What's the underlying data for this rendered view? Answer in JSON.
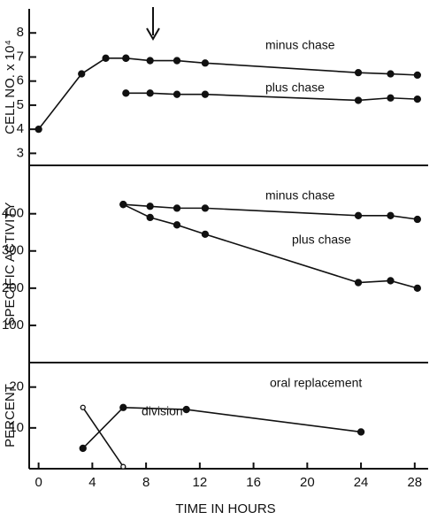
{
  "chart_data": [
    {
      "type": "line",
      "ylabel": "CELL NO. x 10⁴",
      "xlim": [
        -0.7,
        29
      ],
      "ylim": [
        2.5,
        9
      ],
      "yticks": [
        3,
        4,
        5,
        6,
        7,
        8
      ],
      "series": [
        {
          "color": "#111111",
          "x": [
            0,
            3.2,
            5,
            6.5
          ],
          "values": [
            4.0,
            6.3,
            6.95,
            6.95
          ]
        },
        {
          "name": "minus chase",
          "color": "#111111",
          "x": [
            6.5,
            8.3,
            10.3,
            12.4,
            23.8,
            26.2,
            28.2
          ],
          "values": [
            6.95,
            6.85,
            6.85,
            6.75,
            6.35,
            6.3,
            6.25
          ]
        },
        {
          "name": "plus chase",
          "color": "#111111",
          "x": [
            6.5,
            8.3,
            10.3,
            12.4,
            23.8,
            26.2,
            28.2
          ],
          "values": [
            5.5,
            5.5,
            5.45,
            5.45,
            5.2,
            5.3,
            5.25
          ]
        }
      ]
    },
    {
      "type": "line",
      "ylabel": "SPECIFIC ACTIVITY",
      "xlim": [
        -0.7,
        29
      ],
      "ylim": [
        0,
        530
      ],
      "yticks": [
        100,
        200,
        300,
        400
      ],
      "series": [
        {
          "name": "minus chase",
          "color": "#111111",
          "x": [
            6.3,
            8.3,
            10.3,
            12.4,
            23.8,
            26.2,
            28.2
          ],
          "values": [
            425,
            420,
            415,
            415,
            395,
            395,
            385
          ]
        },
        {
          "name": "plus chase",
          "color": "#111111",
          "x": [
            6.3,
            8.3,
            10.3,
            12.4,
            23.8,
            26.2,
            28.2
          ],
          "values": [
            425,
            390,
            370,
            345,
            215,
            220,
            200
          ]
        }
      ]
    },
    {
      "type": "line",
      "ylabel": "PERCENT",
      "xlabel": "TIME IN HOURS",
      "xlim": [
        -0.7,
        29
      ],
      "xticks": [
        0,
        4,
        8,
        12,
        16,
        20,
        24,
        28
      ],
      "ylim": [
        0,
        26
      ],
      "yticks": [
        10,
        20
      ],
      "series": [
        {
          "name": "oral replacement",
          "color": "#111111",
          "marker": "filled",
          "x": [
            3.3,
            6.3,
            11,
            24
          ],
          "values": [
            5,
            15,
            14.5,
            9
          ]
        },
        {
          "name": "division",
          "color": "#111111",
          "marker": "open",
          "x": [
            3.3,
            6.3
          ],
          "values": [
            15,
            0.5
          ]
        }
      ]
    }
  ]
}
